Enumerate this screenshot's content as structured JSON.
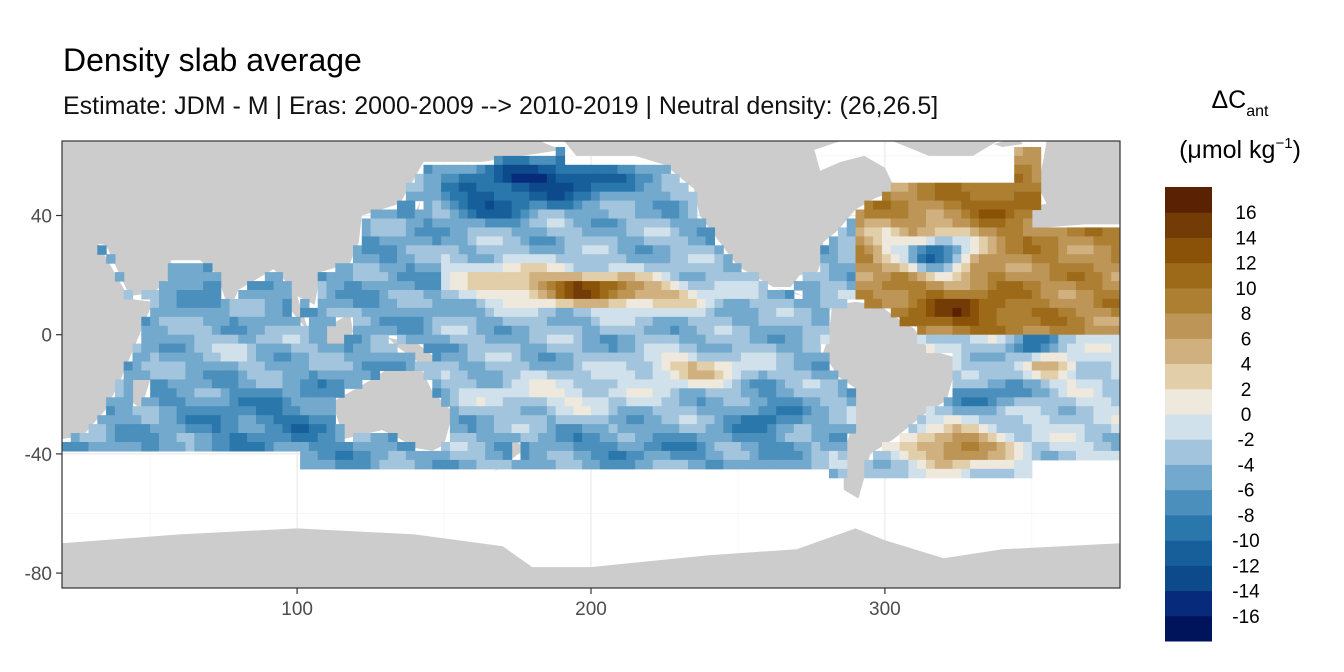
{
  "title": "Density slab average",
  "subtitle": "Estimate: JDM - M | Eras: 2000-2009 --> 2010-2019 | Neutral density: (26,26.5]",
  "chart_data": {
    "type": "heatmap",
    "x_ticks": [
      100,
      200,
      300
    ],
    "y_ticks": [
      40,
      0,
      -40,
      -80
    ],
    "xlim": [
      20,
      380
    ],
    "ylim": [
      -85,
      65
    ],
    "grid": "on",
    "legend_title_main": "ΔC",
    "legend_title_sub": "ant",
    "legend_unit_open": "(μmol kg",
    "legend_unit_sup": "−1",
    "legend_unit_close": ")",
    "legend_placement": "right",
    "colorbar_breaks": [
      -18,
      -16,
      -14,
      -12,
      -10,
      -8,
      -6,
      -4,
      -2,
      0,
      2,
      4,
      6,
      8,
      10,
      12,
      14,
      16,
      18
    ],
    "colorbar_colors": [
      "#00145c",
      "#082a7a",
      "#0c4a8c",
      "#165f9b",
      "#2a77ab",
      "#4b8fbd",
      "#73a9cd",
      "#a2c4dd",
      "#d0e1ec",
      "#eee9dc",
      "#e2cfa9",
      "#cfb07e",
      "#bd9556",
      "#ad7f33",
      "#9c6a18",
      "#8a5108",
      "#733b05",
      "#5a2203"
    ],
    "colorbar_labels": [
      "16",
      "14",
      "12",
      "10",
      "8",
      "6",
      "4",
      "2",
      "0",
      "-2",
      "-4",
      "-6",
      "-8",
      "-10",
      "-12",
      "-14",
      "-16"
    ],
    "land_color": "#cccccc",
    "nodata_color": "#ffffff"
  }
}
